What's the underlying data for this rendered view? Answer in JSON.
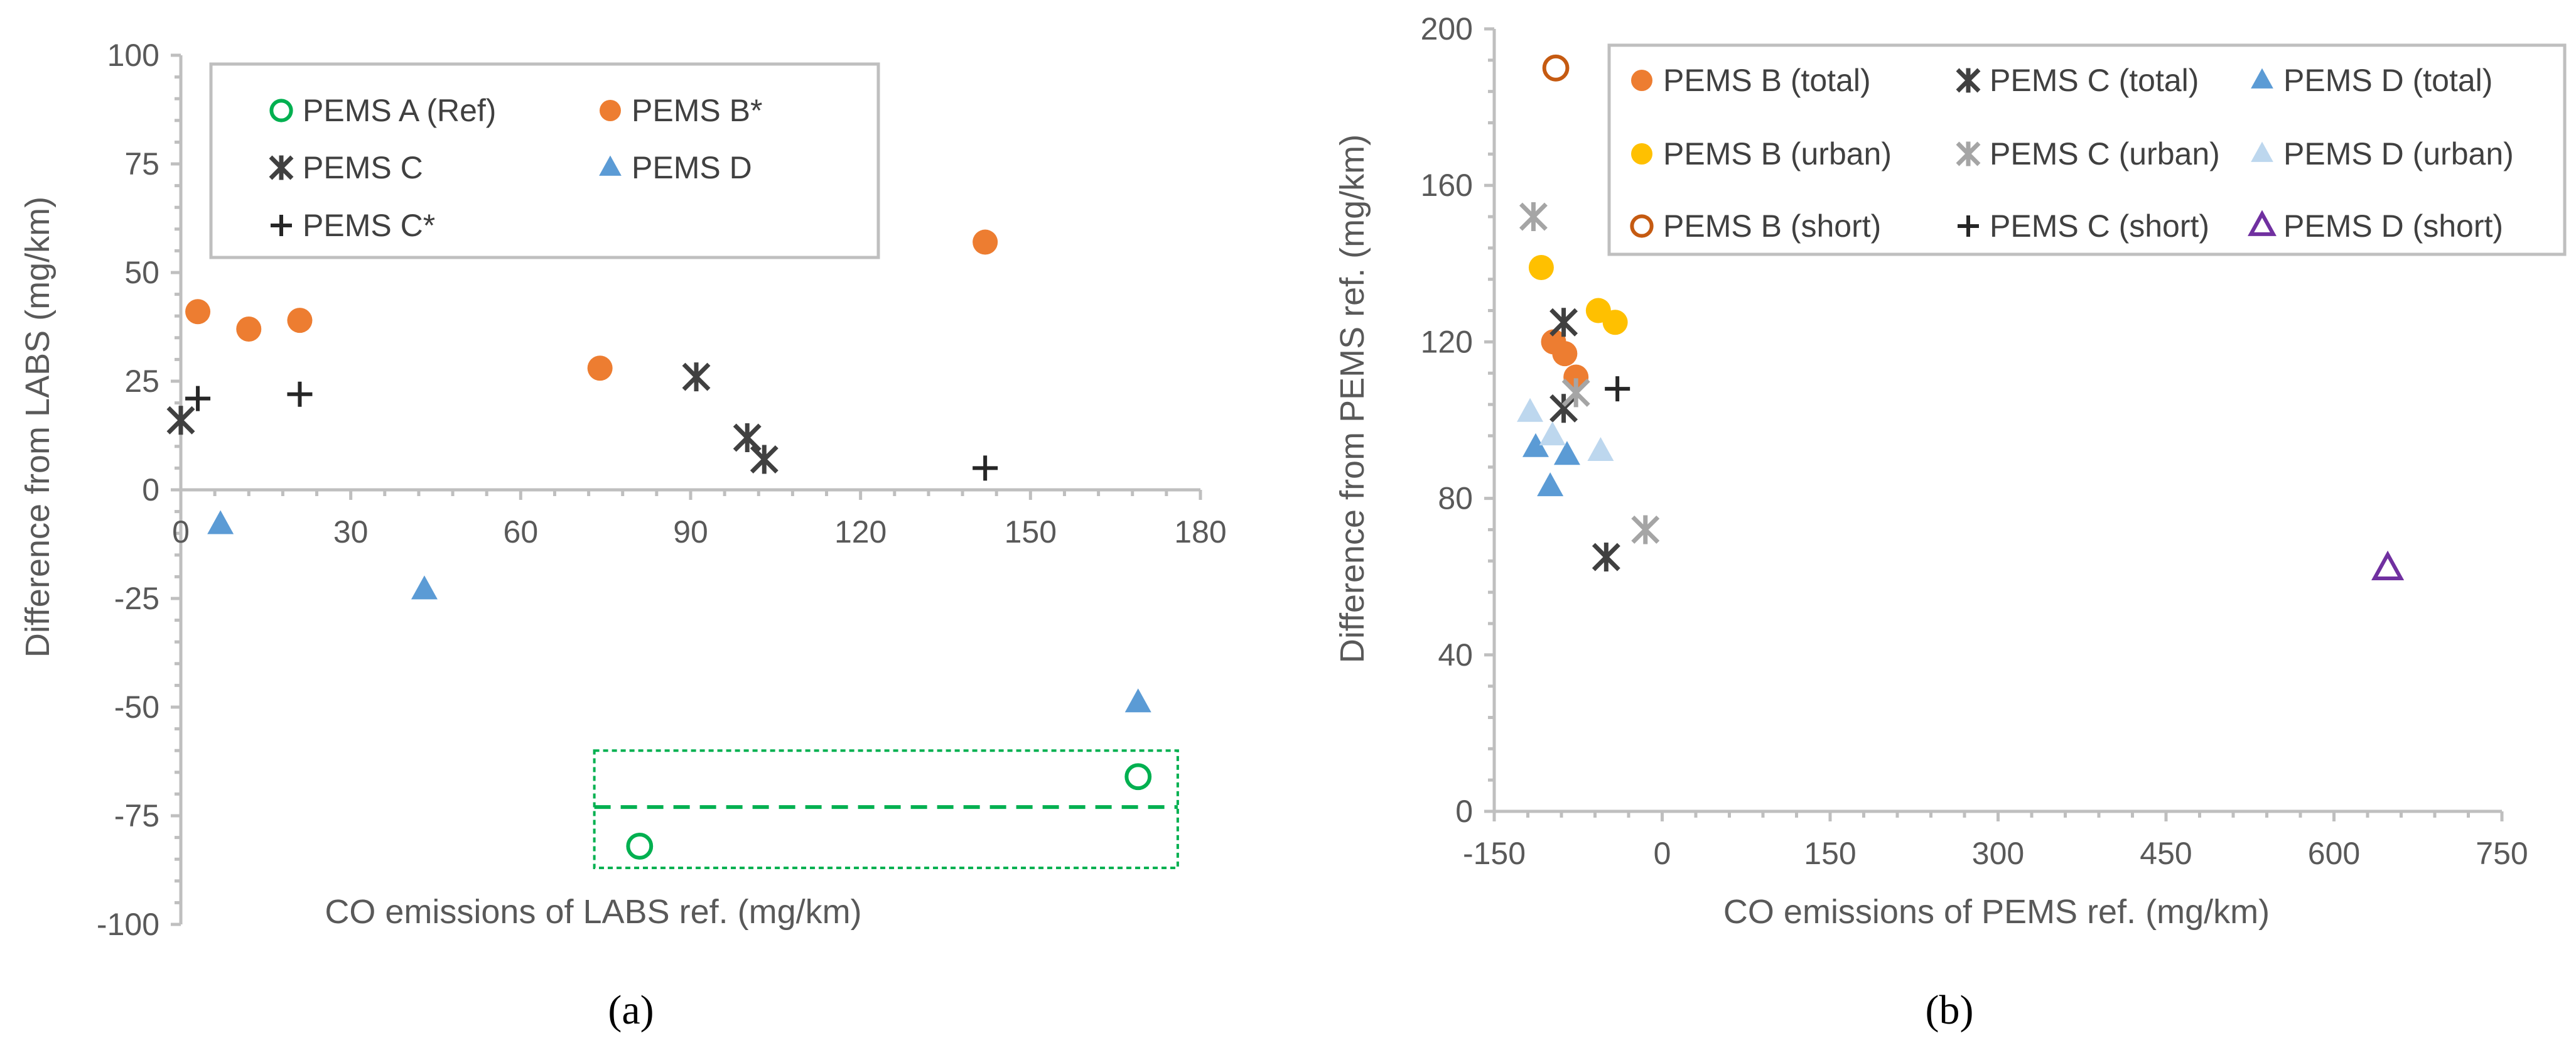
{
  "figure_captions": [
    "(a)",
    "(b)"
  ],
  "chart_data": [
    {
      "id": "a",
      "type": "scatter",
      "caption": "(a)",
      "xlabel": "CO emissions of LABS ref. (mg/km)",
      "ylabel": "Difference from LABS (mg/km)",
      "xlim": [
        0,
        180
      ],
      "ylim": [
        -100,
        100
      ],
      "x_ticks": [
        0,
        30,
        60,
        90,
        120,
        150,
        180
      ],
      "y_ticks": [
        -100,
        -75,
        -50,
        -25,
        0,
        25,
        50,
        75,
        100
      ],
      "legend_position": "top-center",
      "series": [
        {
          "name": "PEMS A (Ref)",
          "marker": "circle-open",
          "color": "#00b050",
          "points": [
            [
              81,
              -82
            ],
            [
              169,
              -66
            ]
          ]
        },
        {
          "name": "PEMS B*",
          "marker": "circle",
          "color": "#ed7d31",
          "points": [
            [
              3,
              41
            ],
            [
              12,
              37
            ],
            [
              21,
              39
            ],
            [
              74,
              28
            ],
            [
              142,
              57
            ]
          ]
        },
        {
          "name": "PEMS C",
          "marker": "asterisk",
          "color": "#404040",
          "points": [
            [
              0,
              16
            ],
            [
              91,
              26
            ],
            [
              100,
              12
            ],
            [
              103,
              7
            ]
          ]
        },
        {
          "name": "PEMS D",
          "marker": "triangle",
          "color": "#5b9bd5",
          "points": [
            [
              7,
              -8
            ],
            [
              43,
              -23
            ],
            [
              169,
              -49
            ]
          ]
        },
        {
          "name": "PEMS C*",
          "marker": "plus",
          "color": "#262626",
          "points": [
            [
              3,
              21
            ],
            [
              21,
              22
            ],
            [
              142,
              5
            ]
          ]
        }
      ],
      "annotations": [
        {
          "kind": "dashed-box",
          "color": "#00b050",
          "x_range": [
            73,
            176
          ],
          "y_range": [
            -87,
            -60
          ]
        },
        {
          "kind": "dashed-line",
          "color": "#00b050",
          "x_range": [
            73,
            176
          ],
          "y": -73
        }
      ]
    },
    {
      "id": "b",
      "type": "scatter",
      "caption": "(b)",
      "xlabel": "CO emissions of PEMS ref. (mg/km)",
      "ylabel": "Difference from PEMS ref. (mg/km)",
      "xlim": [
        -150,
        750
      ],
      "ylim": [
        0,
        200
      ],
      "x_ticks": [
        -150,
        0,
        150,
        300,
        450,
        600,
        750
      ],
      "y_ticks": [
        0,
        40,
        80,
        120,
        160,
        200
      ],
      "legend_position": "top",
      "series": [
        {
          "name": "PEMS B (total)",
          "marker": "circle",
          "color": "#ed7d31",
          "points": [
            [
              -97,
              120
            ],
            [
              -87,
              117
            ],
            [
              -77,
              111
            ]
          ]
        },
        {
          "name": "PEMS C (total)",
          "marker": "asterisk",
          "color": "#404040",
          "points": [
            [
              -88,
              125
            ],
            [
              -88,
              103
            ],
            [
              -50,
              65
            ]
          ]
        },
        {
          "name": "PEMS D (total)",
          "marker": "triangle",
          "color": "#5b9bd5",
          "points": [
            [
              -113,
              93
            ],
            [
              -100,
              83
            ],
            [
              -85,
              91
            ]
          ]
        },
        {
          "name": "PEMS B (urban)",
          "marker": "circle",
          "color": "#ffc000",
          "points": [
            [
              -108,
              139
            ],
            [
              -57,
              128
            ],
            [
              -42,
              125
            ]
          ]
        },
        {
          "name": "PEMS C (urban)",
          "marker": "asterisk",
          "color": "#a5a5a5",
          "points": [
            [
              -115,
              152
            ],
            [
              -77,
              107
            ],
            [
              -15,
              72
            ]
          ]
        },
        {
          "name": "PEMS D (urban)",
          "marker": "triangle",
          "color": "#bdd7ee",
          "points": [
            [
              -118,
              102
            ],
            [
              -98,
              96
            ],
            [
              -55,
              92
            ]
          ]
        },
        {
          "name": "PEMS B (short)",
          "marker": "circle-open",
          "color": "#c55a11",
          "points": [
            [
              -95,
              190
            ]
          ]
        },
        {
          "name": "PEMS C (short)",
          "marker": "plus",
          "color": "#262626",
          "points": [
            [
              -40,
              108
            ]
          ]
        },
        {
          "name": "PEMS D (short)",
          "marker": "triangle-open",
          "color": "#7030a0",
          "points": [
            [
              648,
              62
            ]
          ]
        }
      ]
    }
  ]
}
